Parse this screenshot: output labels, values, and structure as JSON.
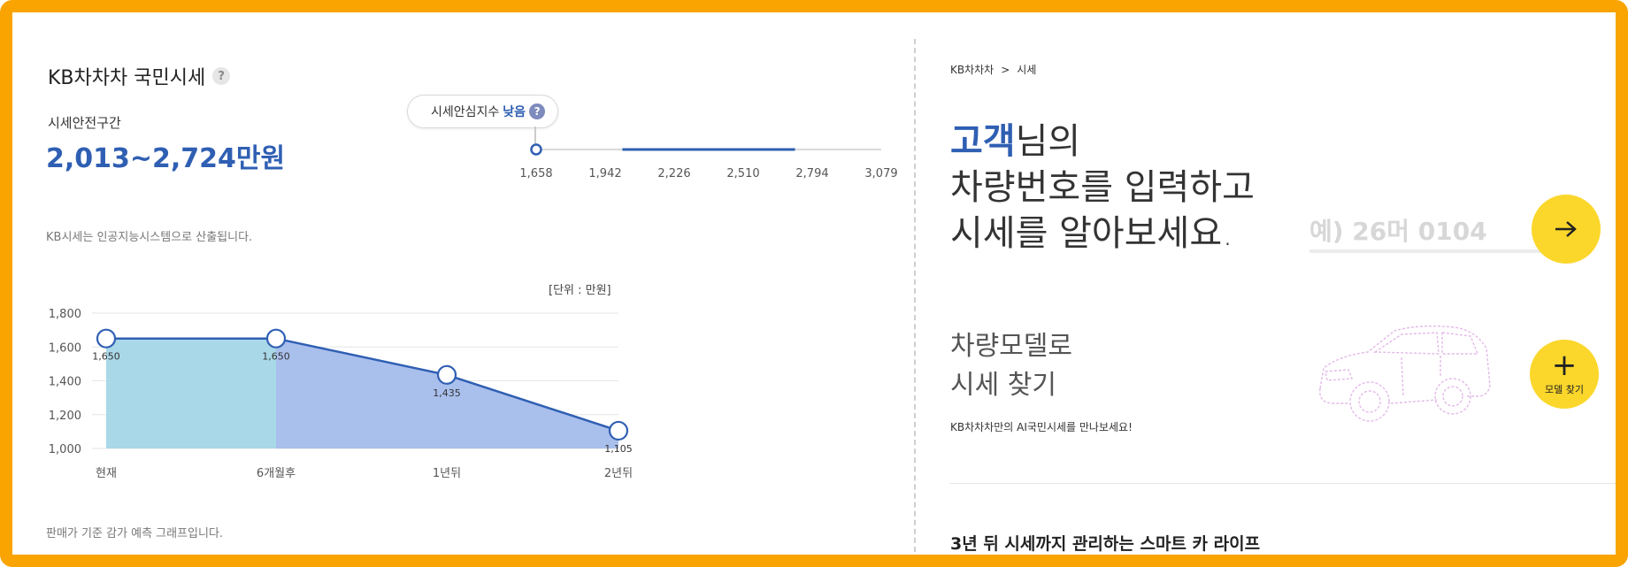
{
  "left": {
    "title": "KB차차차 국민시세",
    "title_help": "?",
    "safe_label": "시세안전구간",
    "safe_range": "2,013~2,724만원",
    "confidence_label": "시세안심지수",
    "confidence_value": "낮음",
    "confidence_help": "?",
    "scale_ticks": [
      "1,658",
      "1,942",
      "2,226",
      "2,510",
      "2,794",
      "3,079"
    ],
    "scale_safe_range": [
      2013,
      2724
    ],
    "scale_marker_value": 1658,
    "ai_note": "KB시세는 인공지능시스템으로 산출됩니다.",
    "unit_label": "[단위 : 만원]",
    "footer_note": "판매가 기준 감가 예측 그래프입니다."
  },
  "chart_data": {
    "type": "area",
    "categories": [
      "현재",
      "6개월후",
      "1년뒤",
      "2년뒤"
    ],
    "values": [
      1650,
      1650,
      1435,
      1105
    ],
    "value_labels": [
      "1,650",
      "1,650",
      "1,435",
      "1,105"
    ],
    "ylim": [
      1000,
      1800
    ],
    "yticks": [
      1000,
      1200,
      1400,
      1600,
      1800
    ],
    "ytick_labels": [
      "1,000",
      "1,200",
      "1,400",
      "1,600",
      "1,800"
    ],
    "grid": true,
    "colors": {
      "first_segment": "#a9d8e8",
      "rest_area": "#a9bfec",
      "line": "#2f5fb3"
    }
  },
  "right": {
    "breadcrumb": [
      "KB차차차",
      ">",
      "시세"
    ],
    "hero_accent": "고객",
    "hero_line1_rest": "님의",
    "hero_line2": "차량번호를 입력하고",
    "hero_line3": "시세를 알아보세요.",
    "plate_placeholder": "예) 26머 0104",
    "model_title_line1": "차량모델로",
    "model_title_line2": "시세 찾기",
    "model_desc": "KB차차차만의 AI국민시세를 만나보세요!",
    "model_button_label": "모델 찾기",
    "smart_life": "3년 뒤 시세까지 관리하는 스마트 카 라이프"
  },
  "colors": {
    "accent": "#2f5fb3",
    "yellow": "#fbd72b",
    "frame": "#f9a400"
  }
}
